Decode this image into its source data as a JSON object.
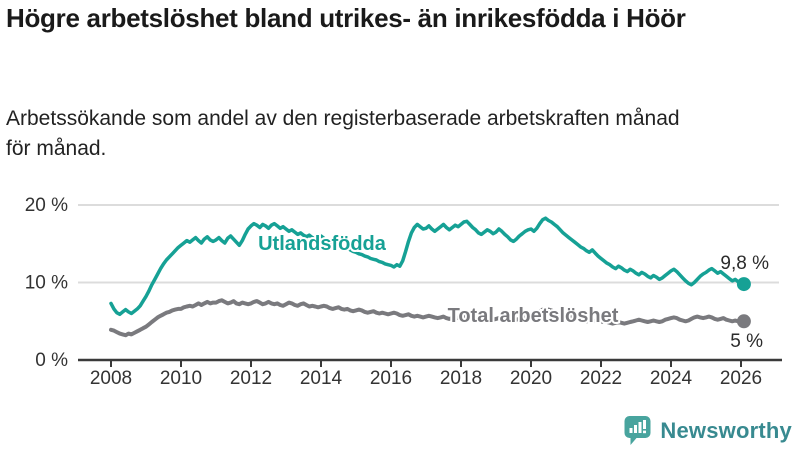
{
  "header": {
    "title": "Högre arbetslöshet bland utrikes- än inrikesfödda i Höör",
    "subtitle": "Arbetssökande som andel av den registerbaserade arbetskraften månad för månad."
  },
  "chart_data": {
    "type": "line",
    "title": "Högre arbetslöshet bland utrikes- än inrikesfödda i Höör",
    "subtitle": "Arbetssökande som andel av den registerbaserade arbetskraften månad för månad.",
    "x_start": "2008-01",
    "x_end": "2026-02",
    "x_interval": "month",
    "xlabel": "",
    "ylabel": "",
    "ylim": [
      0,
      20
    ],
    "grid": "horizontal",
    "legend": "inline-labels",
    "colors": {
      "grid": "#dcdcdc",
      "axis": "#3a3a3a",
      "tick_label": "#333333",
      "value_label": "#2b2b2b",
      "label_halo": "#ffffff"
    },
    "y_ticks": [
      {
        "v": 0,
        "label": "0 %"
      },
      {
        "v": 10,
        "label": "10 %"
      },
      {
        "v": 20,
        "label": "20 %"
      }
    ],
    "x_ticks": [
      {
        "v": 2008,
        "label": "2008"
      },
      {
        "v": 2010,
        "label": "2010"
      },
      {
        "v": 2012,
        "label": "2012"
      },
      {
        "v": 2014,
        "label": "2014"
      },
      {
        "v": 2016,
        "label": "2016"
      },
      {
        "v": 2018,
        "label": "2018"
      },
      {
        "v": 2020,
        "label": "2020"
      },
      {
        "v": 2022,
        "label": "2022"
      },
      {
        "v": 2024,
        "label": "2024"
      },
      {
        "v": 2026,
        "label": "2026"
      }
    ],
    "series": [
      {
        "name": "Utlandsfödda",
        "color": "#16a195",
        "end_value": 9.8,
        "end_label": "9,8 %",
        "values": [
          7.3,
          6.6,
          6.1,
          5.9,
          6.2,
          6.5,
          6.2,
          6.0,
          6.3,
          6.6,
          7.0,
          7.6,
          8.2,
          8.9,
          9.7,
          10.4,
          11.1,
          11.8,
          12.4,
          12.9,
          13.3,
          13.7,
          14.1,
          14.5,
          14.8,
          15.1,
          15.4,
          15.2,
          15.5,
          15.8,
          15.4,
          15.1,
          15.6,
          15.9,
          15.5,
          15.3,
          15.5,
          15.8,
          15.4,
          15.1,
          15.7,
          16.0,
          15.6,
          15.2,
          14.8,
          15.4,
          16.2,
          16.9,
          17.3,
          17.6,
          17.4,
          17.1,
          17.5,
          17.3,
          17.0,
          17.4,
          17.6,
          17.3,
          17.0,
          17.2,
          16.9,
          16.6,
          16.8,
          16.5,
          16.2,
          16.4,
          16.1,
          15.9,
          16.1,
          15.8,
          15.6,
          15.8,
          16.0,
          15.7,
          15.4,
          15.2,
          15.0,
          14.8,
          14.9,
          14.6,
          14.4,
          14.5,
          14.2,
          14.0,
          13.9,
          13.7,
          13.6,
          13.4,
          13.3,
          13.1,
          13.0,
          12.9,
          12.7,
          12.6,
          12.4,
          12.3,
          12.2,
          12.0,
          12.3,
          12.1,
          12.8,
          14.0,
          15.3,
          16.4,
          17.1,
          17.5,
          17.2,
          16.9,
          17.0,
          17.3,
          16.9,
          16.6,
          16.9,
          17.2,
          17.5,
          17.1,
          16.8,
          17.1,
          17.4,
          17.2,
          17.5,
          17.8,
          17.9,
          17.5,
          17.1,
          16.8,
          16.4,
          16.2,
          16.5,
          16.8,
          16.6,
          16.3,
          16.5,
          16.9,
          16.6,
          16.2,
          15.9,
          15.5,
          15.3,
          15.6,
          16.0,
          16.3,
          16.6,
          16.8,
          16.9,
          16.6,
          17.0,
          17.6,
          18.1,
          18.3,
          18.0,
          17.8,
          17.5,
          17.2,
          16.8,
          16.4,
          16.1,
          15.8,
          15.5,
          15.2,
          14.9,
          14.6,
          14.4,
          14.1,
          13.9,
          14.2,
          13.8,
          13.4,
          13.1,
          12.8,
          12.5,
          12.3,
          12.0,
          11.8,
          12.1,
          11.9,
          11.6,
          11.4,
          11.7,
          11.5,
          11.2,
          11.0,
          11.3,
          11.1,
          10.8,
          10.6,
          10.9,
          10.7,
          10.4,
          10.6,
          10.9,
          11.2,
          11.5,
          11.7,
          11.4,
          11.0,
          10.6,
          10.2,
          9.9,
          9.7,
          10.0,
          10.4,
          10.8,
          11.1,
          11.3,
          11.6,
          11.8,
          11.5,
          11.2,
          11.4,
          11.1,
          10.8,
          10.5,
          10.2,
          10.4,
          10.1,
          9.9,
          9.8
        ]
      },
      {
        "name": "Total arbetslöshet",
        "color": "#7a7a7e",
        "end_value": 5.0,
        "end_label": "5 %",
        "values": [
          3.9,
          3.8,
          3.6,
          3.4,
          3.3,
          3.2,
          3.4,
          3.3,
          3.5,
          3.7,
          3.9,
          4.1,
          4.3,
          4.6,
          4.9,
          5.2,
          5.5,
          5.7,
          5.9,
          6.1,
          6.2,
          6.4,
          6.5,
          6.6,
          6.6,
          6.8,
          6.9,
          7.0,
          6.9,
          7.1,
          7.3,
          7.1,
          7.3,
          7.5,
          7.3,
          7.4,
          7.4,
          7.6,
          7.7,
          7.5,
          7.3,
          7.4,
          7.6,
          7.3,
          7.2,
          7.4,
          7.3,
          7.2,
          7.3,
          7.5,
          7.6,
          7.4,
          7.2,
          7.3,
          7.5,
          7.3,
          7.2,
          7.3,
          7.1,
          7.0,
          7.2,
          7.4,
          7.3,
          7.1,
          7.0,
          7.2,
          7.3,
          7.1,
          6.9,
          7.0,
          6.9,
          6.8,
          6.9,
          7.0,
          6.9,
          6.7,
          6.6,
          6.7,
          6.8,
          6.6,
          6.5,
          6.6,
          6.4,
          6.3,
          6.4,
          6.5,
          6.4,
          6.2,
          6.1,
          6.2,
          6.3,
          6.1,
          6.0,
          6.1,
          6.0,
          5.9,
          6.0,
          6.1,
          6.0,
          5.8,
          5.7,
          5.8,
          5.9,
          5.7,
          5.6,
          5.7,
          5.6,
          5.5,
          5.6,
          5.7,
          5.6,
          5.5,
          5.4,
          5.5,
          5.6,
          5.4,
          5.3,
          5.4,
          5.5,
          5.4,
          5.5,
          5.6,
          5.5,
          5.3,
          5.2,
          5.3,
          5.4,
          5.2,
          5.1,
          5.2,
          5.3,
          5.2,
          5.3,
          5.4,
          5.3,
          5.2,
          5.1,
          5.2,
          5.3,
          5.2,
          5.3,
          5.4,
          5.5,
          5.6,
          5.7,
          5.6,
          5.8,
          6.2,
          6.5,
          6.6,
          6.5,
          6.4,
          6.2,
          6.1,
          5.9,
          5.8,
          5.7,
          5.6,
          5.5,
          5.4,
          5.3,
          5.2,
          5.1,
          5.0,
          5.0,
          5.1,
          5.0,
          4.9,
          4.9,
          5.0,
          4.9,
          4.8,
          4.7,
          4.8,
          4.9,
          4.8,
          4.7,
          4.8,
          4.9,
          5.0,
          5.1,
          5.2,
          5.1,
          5.0,
          4.9,
          5.0,
          5.1,
          5.0,
          4.9,
          5.0,
          5.2,
          5.3,
          5.4,
          5.5,
          5.4,
          5.2,
          5.1,
          5.0,
          5.1,
          5.3,
          5.5,
          5.6,
          5.5,
          5.4,
          5.5,
          5.6,
          5.5,
          5.3,
          5.2,
          5.3,
          5.4,
          5.2,
          5.1,
          5.0,
          5.1,
          5.0,
          5.0,
          5.0
        ]
      }
    ]
  },
  "footer": {
    "brand": "Newsworthy",
    "logo_icon": "newsworthy-speech-bubble-bar-chart-icon",
    "brand_color": "#388a90",
    "icon_color": "#48a49e"
  }
}
